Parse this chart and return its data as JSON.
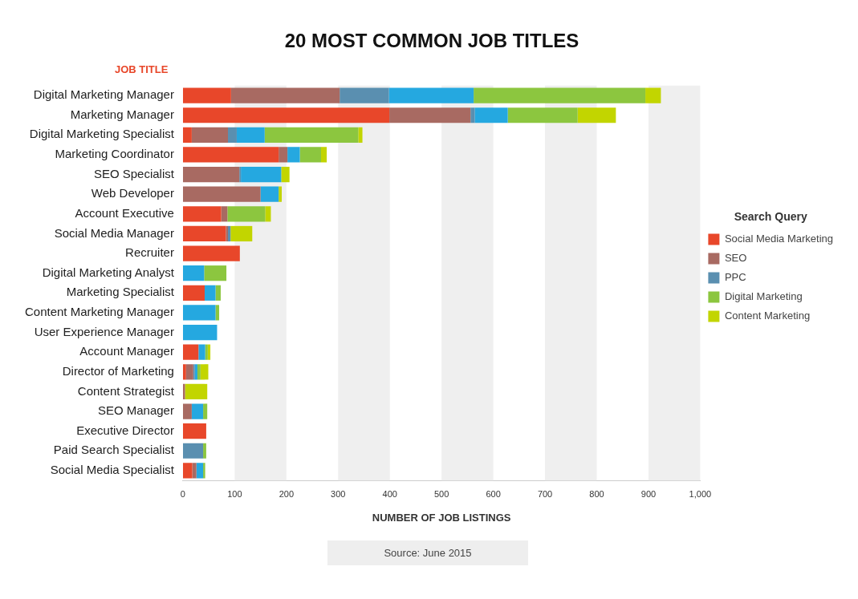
{
  "chart_data": {
    "type": "bar",
    "orientation": "horizontal",
    "stacked": true,
    "title": "20 MOST COMMON JOB TITLES",
    "ylabel": "JOB TITLE",
    "xlabel": "NUMBER OF JOB LISTINGS",
    "legend_title": "Search Query",
    "legend": "right",
    "bands": [
      {
        "axis": "x",
        "from": 100,
        "to": 200,
        "color": "#efefef"
      },
      {
        "axis": "x",
        "from": 300,
        "to": 400,
        "color": "#efefef"
      },
      {
        "axis": "x",
        "from": 500,
        "to": 600,
        "color": "#efefef"
      },
      {
        "axis": "x",
        "from": 700,
        "to": 800,
        "color": "#efefef"
      },
      {
        "axis": "x",
        "from": 900,
        "to": 1000,
        "color": "#efefef"
      }
    ],
    "categories": [
      "Digital Marketing Manager",
      "Marketing Manager",
      "Digital Marketing Specialist",
      "Marketing Coordinator",
      "SEO Specialist",
      "Web Developer",
      "Account Executive",
      "Social Media Manager",
      "Recruiter",
      "Digital Marketing Analyst",
      "Marketing Specialist",
      "Content Marketing Manager",
      "User Experience Manager",
      "Account Manager",
      "Director of Marketing",
      "Content Strategist",
      "SEO Manager",
      "Executive Director",
      "Paid Search Specialist",
      "Social Media Specialist"
    ],
    "xlim": [
      0,
      1000
    ],
    "xticks": [
      0,
      100,
      200,
      300,
      400,
      500,
      600,
      700,
      800,
      900,
      {
        "value": 1000,
        "label": "1,000"
      }
    ],
    "series": [
      {
        "name": "Social Media Marketing",
        "color": "#e8472a",
        "values": [
          93,
          399,
          17,
          185,
          0,
          0,
          74,
          83,
          110,
          0,
          42,
          0,
          0,
          30,
          6,
          0,
          0,
          45,
          0,
          18
        ]
      },
      {
        "name": "SEO",
        "color": "#a86a62",
        "values": [
          210,
          157,
          70,
          17,
          109,
          150,
          12,
          4,
          0,
          0,
          0,
          0,
          0,
          0,
          14,
          4,
          17,
          0,
          0,
          8
        ]
      },
      {
        "name": "PPC",
        "color": "#5a8fb0",
        "values": [
          95,
          8,
          17,
          0,
          3,
          0,
          0,
          5,
          0,
          0,
          0,
          0,
          0,
          0,
          3,
          0,
          0,
          0,
          39,
          0
        ]
      },
      {
        "color": "#25a8e0",
        "values": [
          164,
          64,
          54,
          24,
          78,
          35,
          0,
          0,
          0,
          41,
          21,
          63,
          66,
          13,
          5,
          0,
          22,
          0,
          0,
          13
        ]
      },
      {
        "name": "Digital Marketing",
        "color": "#8cc63f",
        "values": [
          332,
          135,
          181,
          41,
          0,
          0,
          73,
          0,
          0,
          43,
          10,
          7,
          0,
          5,
          6,
          0,
          8,
          0,
          6,
          4
        ]
      },
      {
        "name": "Content Marketing",
        "color": "#c2d500",
        "values": [
          30,
          74,
          8,
          11,
          16,
          6,
          11,
          42,
          0,
          0,
          0,
          0,
          0,
          5,
          15,
          43,
          0,
          0,
          0,
          0
        ]
      }
    ],
    "annotations": [
      "Source: June 2015"
    ]
  }
}
